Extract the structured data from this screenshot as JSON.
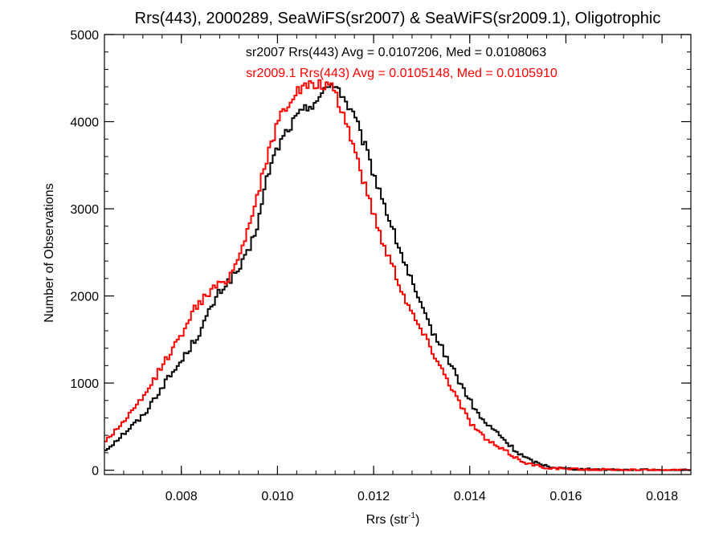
{
  "chart_data": {
    "type": "line",
    "title": "Rrs(443), 2000289, SeaWiFS(sr2007) & SeaWiFS(sr2009.1), Oligotrophic",
    "xlabel": "Rrs (str",
    "xlabel_sup": "-1",
    "xlabel_close": ")",
    "ylabel": "Number of Observations",
    "xlim": [
      0.0064,
      0.0186
    ],
    "ylim": [
      -50,
      5000
    ],
    "x_ticks": [
      0.008,
      0.01,
      0.012,
      0.014,
      0.016,
      0.018
    ],
    "x_tick_labels": [
      "0.008",
      "0.010",
      "0.012",
      "0.014",
      "0.016",
      "0.018"
    ],
    "y_ticks": [
      0,
      1000,
      2000,
      3000,
      4000,
      5000
    ],
    "y_tick_labels": [
      "0",
      "1000",
      "2000",
      "3000",
      "4000",
      "5000"
    ],
    "grid": false,
    "annotations": [
      {
        "text": "sr2007 Rrs(443) Avg = 0.0107206, Med = 0.0108063",
        "color": "#000000"
      },
      {
        "text": "sr2009.1 Rrs(443) Avg = 0.0105148, Med = 0.0105910",
        "color": "#ff0000"
      }
    ],
    "series": [
      {
        "name": "sr2007",
        "color": "#000000",
        "style": "step",
        "x": [
          0.0064,
          0.0068,
          0.0072,
          0.0076,
          0.008,
          0.0084,
          0.0086,
          0.0088,
          0.009,
          0.0092,
          0.0094,
          0.0096,
          0.0098,
          0.01,
          0.0102,
          0.0104,
          0.0106,
          0.0108,
          0.011,
          0.0111,
          0.0112,
          0.0113,
          0.0114,
          0.0116,
          0.0118,
          0.012,
          0.0122,
          0.0124,
          0.0126,
          0.0128,
          0.013,
          0.0132,
          0.0134,
          0.0136,
          0.0138,
          0.014,
          0.0142,
          0.0144,
          0.0146,
          0.0148,
          0.015,
          0.0152,
          0.0154,
          0.0156,
          0.0158,
          0.016,
          0.0164,
          0.0168,
          0.0172,
          0.0176,
          0.018,
          0.0184,
          0.0186
        ],
        "y": [
          220,
          420,
          620,
          960,
          1250,
          1600,
          1840,
          2050,
          2180,
          2300,
          2500,
          2850,
          3400,
          3700,
          3900,
          4050,
          4150,
          4250,
          4350,
          4420,
          4450,
          4350,
          4250,
          4050,
          3750,
          3400,
          3100,
          2750,
          2450,
          2150,
          1850,
          1620,
          1420,
          1220,
          1000,
          800,
          620,
          500,
          420,
          300,
          200,
          130,
          80,
          50,
          30,
          20,
          10,
          8,
          5,
          3,
          2,
          1,
          0
        ]
      },
      {
        "name": "sr2009.1",
        "color": "#ff0000",
        "style": "step",
        "x": [
          0.0064,
          0.0068,
          0.0072,
          0.0076,
          0.008,
          0.0082,
          0.0084,
          0.0086,
          0.0088,
          0.009,
          0.0092,
          0.0094,
          0.0096,
          0.0098,
          0.01,
          0.0102,
          0.0104,
          0.0106,
          0.0108,
          0.011,
          0.0111,
          0.0112,
          0.0114,
          0.0116,
          0.0118,
          0.012,
          0.0122,
          0.0124,
          0.0126,
          0.0128,
          0.013,
          0.0132,
          0.0134,
          0.0136,
          0.0138,
          0.014,
          0.0142,
          0.0144,
          0.0146,
          0.0148,
          0.015,
          0.0152,
          0.0154,
          0.0156,
          0.0158,
          0.016,
          0.0164,
          0.0168,
          0.0172,
          0.0176,
          0.018,
          0.0184,
          0.0186
        ],
        "y": [
          320,
          560,
          820,
          1200,
          1550,
          1800,
          1930,
          2050,
          2130,
          2220,
          2450,
          2800,
          3200,
          3600,
          4000,
          4200,
          4350,
          4400,
          4420,
          4420,
          4400,
          4300,
          4050,
          3700,
          3300,
          2950,
          2600,
          2350,
          2050,
          1800,
          1600,
          1400,
          1180,
          980,
          760,
          560,
          430,
          330,
          260,
          200,
          130,
          80,
          50,
          30,
          20,
          15,
          8,
          5,
          3,
          2,
          1,
          0,
          0
        ]
      }
    ]
  }
}
